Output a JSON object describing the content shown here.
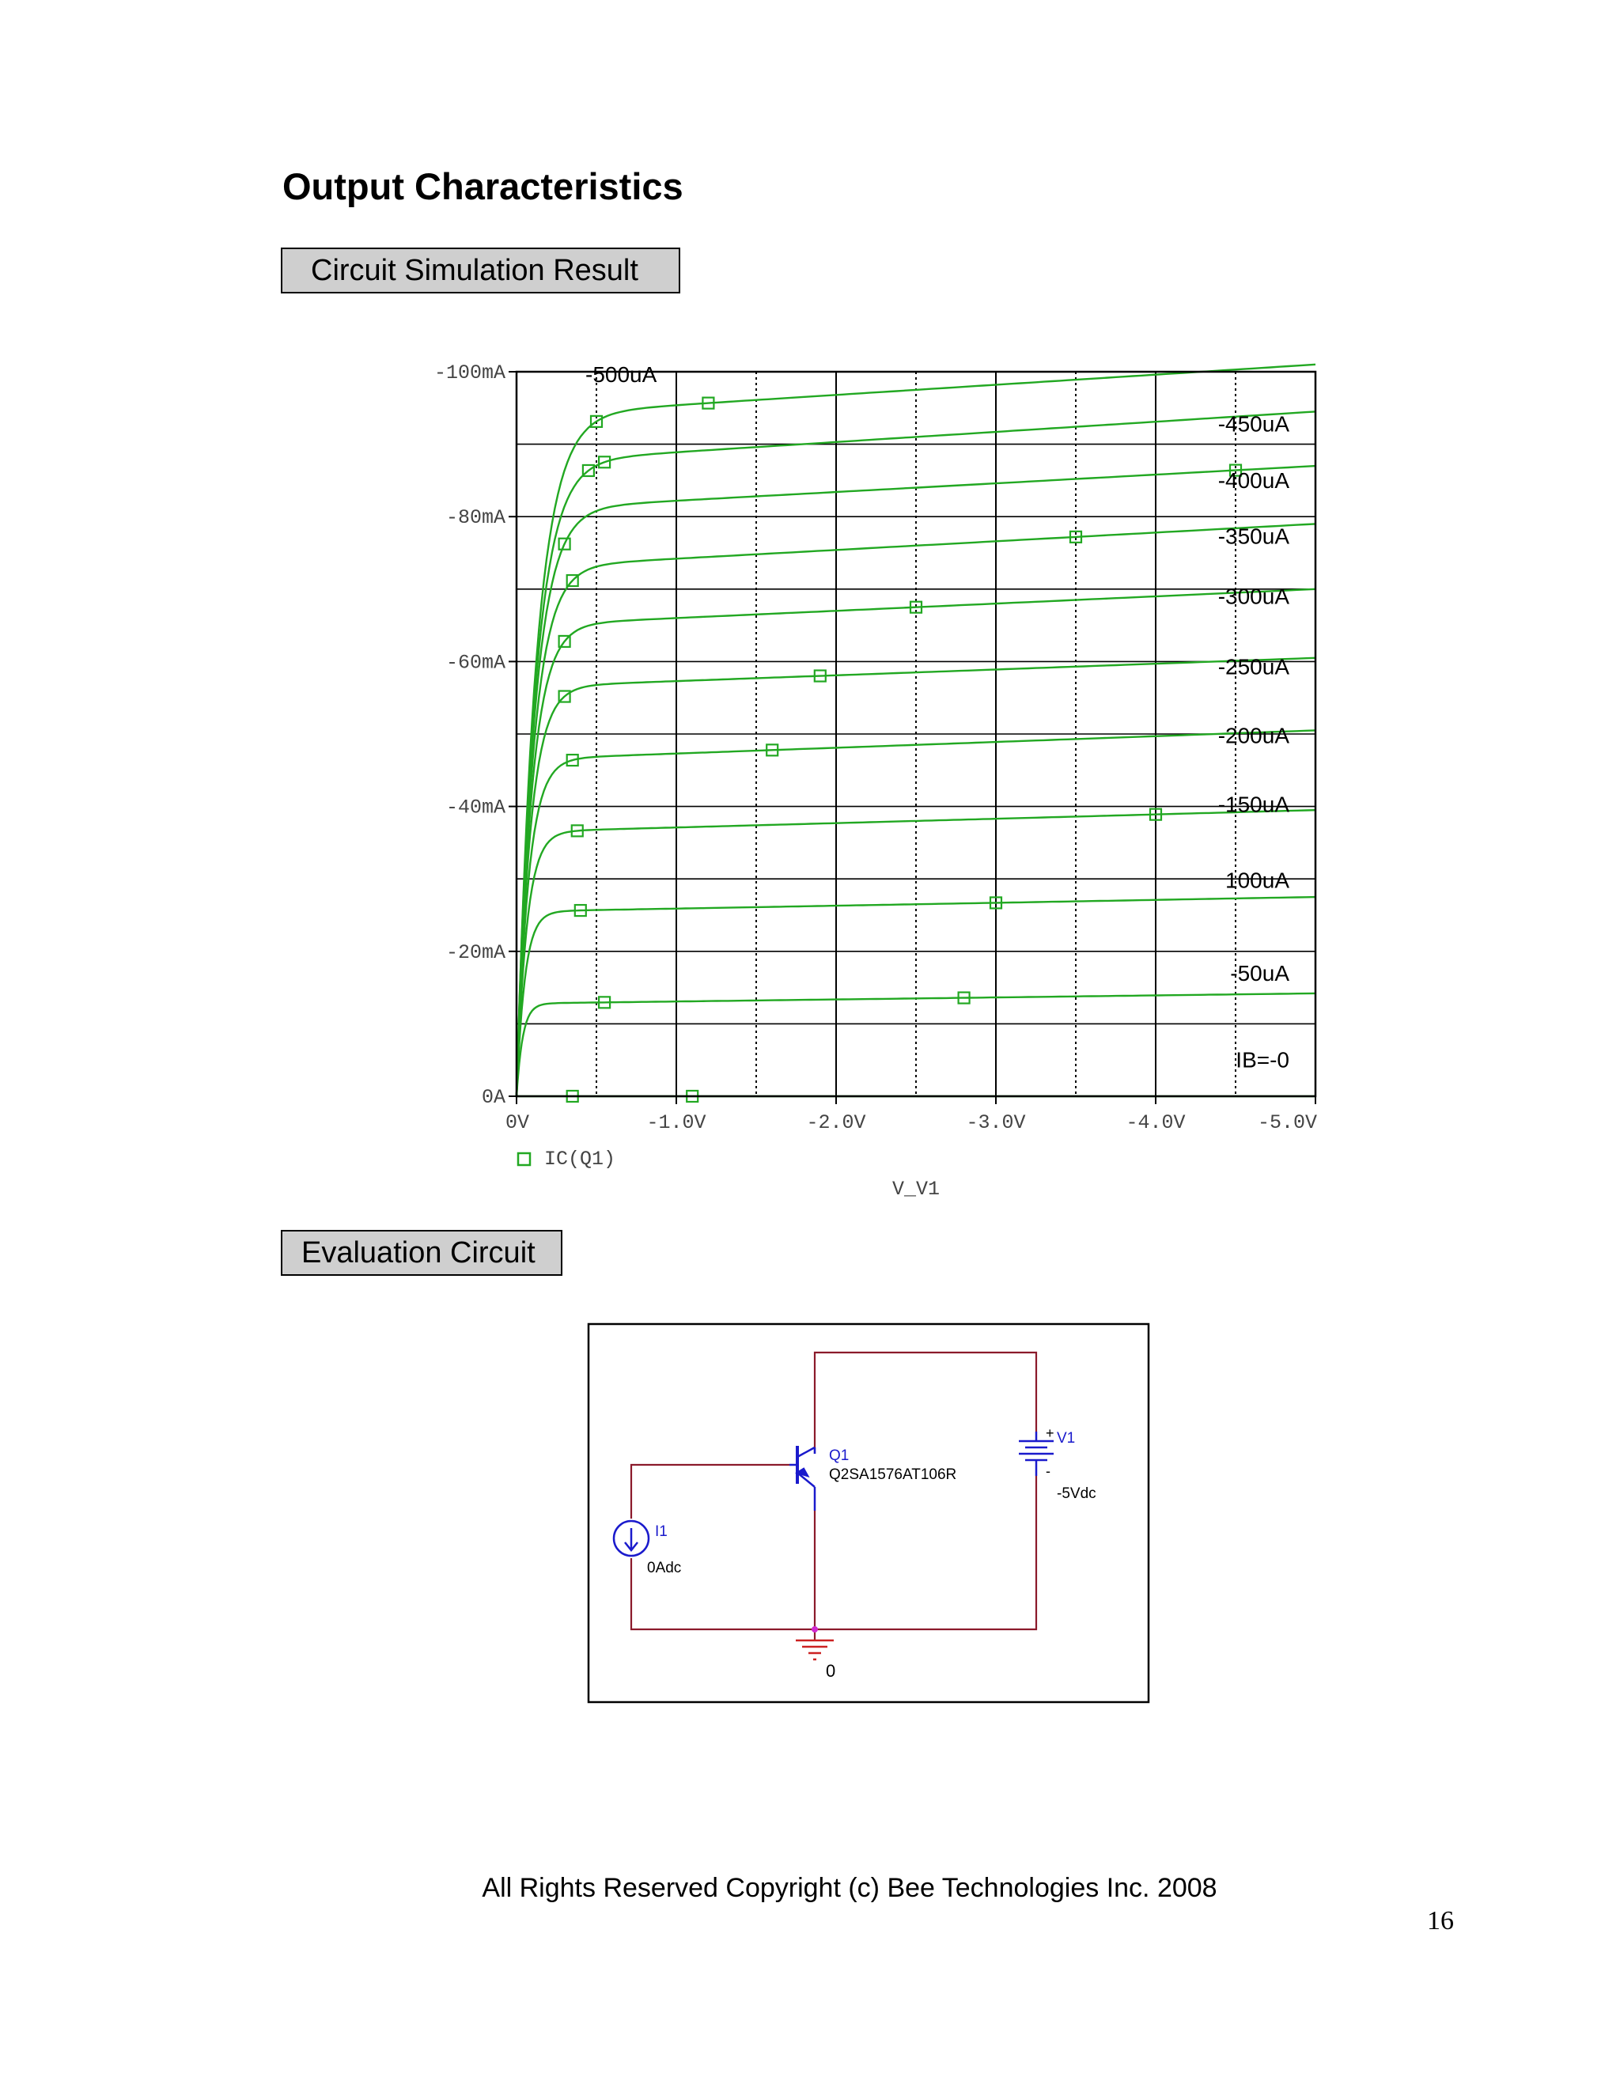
{
  "page": {
    "title": "Output Characteristics",
    "section1_label": "Circuit Simulation Result",
    "section2_label": "Evaluation Circuit",
    "footer": "All Rights Reserved Copyright (c) Bee Technologies Inc. 2008",
    "page_number": "16"
  },
  "chart_data": {
    "type": "line",
    "xlabel": "V_V1",
    "legend": "IC(Q1)",
    "legend_placement": "bottom-left",
    "x_ticks": [
      "0V",
      "-1.0V",
      "-2.0V",
      "-3.0V",
      "-4.0V",
      "-5.0V"
    ],
    "y_ticks": [
      "0A",
      "-20mA",
      "-40mA",
      "-60mA",
      "-80mA",
      "-100mA"
    ],
    "xlim": [
      0,
      -5
    ],
    "ylim": [
      0,
      -100
    ],
    "grid": true,
    "line_color": "#22a822",
    "series": [
      {
        "name": "IB=-0",
        "knee_mA": 0,
        "end_mA": 0
      },
      {
        "name": "-50uA",
        "knee_mA": -12.8,
        "end_mA": -14.2
      },
      {
        "name": "100uA",
        "knee_mA": -25.5,
        "end_mA": -27.5
      },
      {
        "name": "-150uA",
        "knee_mA": -36.5,
        "end_mA": -39.5
      },
      {
        "name": "-200uA",
        "knee_mA": -46.5,
        "end_mA": -50.5
      },
      {
        "name": "-250uA",
        "knee_mA": -56.5,
        "end_mA": -60.5
      },
      {
        "name": "-300uA",
        "knee_mA": -65,
        "end_mA": -70
      },
      {
        "name": "-350uA",
        "knee_mA": -73,
        "end_mA": -79
      },
      {
        "name": "-400uA",
        "knee_mA": -81,
        "end_mA": -87
      },
      {
        "name": "-450uA",
        "knee_mA": -87.5,
        "end_mA": -94.5
      },
      {
        "name": "-500uA",
        "knee_mA": -94,
        "end_mA": -101
      }
    ]
  },
  "circuit": {
    "transistor_ref": "Q1",
    "transistor_model": "Q2SA1576AT106R",
    "source_ref": "V1",
    "source_value": "-5Vdc",
    "current_ref": "I1",
    "current_value": "0Adc",
    "ground_label": "0",
    "plus_sign": "+",
    "minus_sign": "-",
    "wire_color": "#8b1a2b",
    "component_color": "#1a1acc"
  }
}
